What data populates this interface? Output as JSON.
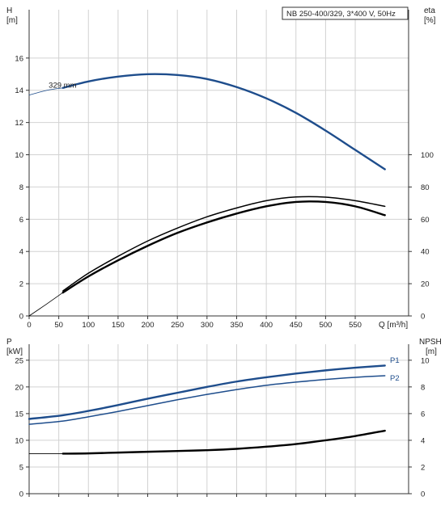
{
  "chart_data": [
    {
      "type": "line",
      "title": "NB 250-400/329, 3*400 V, 50Hz",
      "x_axis": {
        "label": "Q [m³/h]",
        "range": [
          0,
          640
        ],
        "ticks": [
          0,
          50,
          100,
          150,
          200,
          250,
          300,
          350,
          400,
          450,
          500,
          550
        ],
        "grid": true
      },
      "y_axis_left": {
        "label_top": "H",
        "label_unit": "[m]",
        "range": [
          0,
          19
        ],
        "ticks": [
          0,
          2,
          4,
          6,
          8,
          10,
          12,
          14,
          16
        ],
        "grid": true
      },
      "y_axis_right": {
        "label_top": "eta",
        "label_unit": "[%]",
        "range": [
          0,
          190
        ],
        "ticks": [
          0,
          20,
          40,
          60,
          80,
          100
        ]
      },
      "annotations": [
        {
          "text": "329 mm",
          "x": 33,
          "y": 14.2
        }
      ],
      "series": [
        {
          "axis": "left",
          "color": "#1e4d8c",
          "style": "extended-thin",
          "points": [
            [
              0,
              13.7
            ],
            [
              30,
              14.0
            ],
            [
              57,
              14.15
            ]
          ]
        },
        {
          "axis": "left",
          "color": "#1e4d8c",
          "style": "thick",
          "points": [
            [
              57,
              14.15
            ],
            [
              100,
              14.55
            ],
            [
              150,
              14.85
            ],
            [
              200,
              15.0
            ],
            [
              250,
              14.95
            ],
            [
              300,
              14.7
            ],
            [
              350,
              14.2
            ],
            [
              400,
              13.5
            ],
            [
              450,
              12.6
            ],
            [
              500,
              11.5
            ],
            [
              550,
              10.3
            ],
            [
              600,
              9.1
            ]
          ]
        },
        {
          "axis": "right",
          "color": "#000000",
          "style": "extended-thin",
          "points": [
            [
              0,
              0
            ],
            [
              30,
              7.5
            ],
            [
              57,
              14.5
            ]
          ]
        },
        {
          "axis": "right",
          "color": "#000000",
          "style": "medium",
          "points": [
            [
              57,
              15.5
            ],
            [
              100,
              26.5
            ],
            [
              150,
              37
            ],
            [
              200,
              46.5
            ],
            [
              250,
              54.5
            ],
            [
              300,
              61.5
            ],
            [
              350,
              67
            ],
            [
              400,
              71.5
            ],
            [
              450,
              73.8
            ],
            [
              500,
              73.7
            ],
            [
              550,
              71.5
            ],
            [
              600,
              68
            ]
          ]
        },
        {
          "axis": "right",
          "color": "#000000",
          "style": "thick",
          "points": [
            [
              57,
              14.5
            ],
            [
              100,
              24.5
            ],
            [
              150,
              34.5
            ],
            [
              200,
              43.5
            ],
            [
              250,
              51.5
            ],
            [
              300,
              58
            ],
            [
              350,
              63.5
            ],
            [
              400,
              68
            ],
            [
              450,
              70.7
            ],
            [
              500,
              70.7
            ],
            [
              550,
              68
            ],
            [
              600,
              62.5
            ]
          ]
        }
      ]
    },
    {
      "type": "line",
      "y_axis_left": {
        "label_top": "P",
        "label_unit": "[kW]",
        "range": [
          0,
          28
        ],
        "ticks": [
          0,
          5,
          10,
          15,
          20,
          25
        ],
        "grid": true
      },
      "y_axis_right": {
        "label_top": "NPSH",
        "label_unit": "[m]",
        "range": [
          0,
          11.2
        ],
        "ticks": [
          0,
          2,
          4,
          6,
          8,
          10
        ]
      },
      "x_axis": {
        "range": [
          0,
          640
        ],
        "ticks": [
          0,
          50,
          100,
          150,
          200,
          250,
          300,
          350,
          400,
          450,
          500,
          550
        ],
        "grid": true
      },
      "series": [
        {
          "name": "P1",
          "axis": "left",
          "color": "#1e4d8c",
          "style": "thick",
          "points": [
            [
              0,
              14.0
            ],
            [
              57,
              14.7
            ],
            [
              100,
              15.5
            ],
            [
              150,
              16.6
            ],
            [
              200,
              17.8
            ],
            [
              250,
              18.9
            ],
            [
              300,
              20.0
            ],
            [
              350,
              21.0
            ],
            [
              400,
              21.8
            ],
            [
              450,
              22.5
            ],
            [
              500,
              23.1
            ],
            [
              550,
              23.6
            ],
            [
              600,
              24.0
            ]
          ]
        },
        {
          "name": "P2",
          "axis": "left",
          "color": "#1e4d8c",
          "style": "medium",
          "points": [
            [
              0,
              13.0
            ],
            [
              57,
              13.6
            ],
            [
              100,
              14.4
            ],
            [
              150,
              15.4
            ],
            [
              200,
              16.5
            ],
            [
              250,
              17.6
            ],
            [
              300,
              18.6
            ],
            [
              350,
              19.5
            ],
            [
              400,
              20.3
            ],
            [
              450,
              20.9
            ],
            [
              500,
              21.4
            ],
            [
              550,
              21.8
            ],
            [
              600,
              22.1
            ]
          ]
        },
        {
          "axis": "left",
          "color": "#000000",
          "style": "extended-thin",
          "points": [
            [
              0,
              7.5
            ],
            [
              57,
              7.5
            ]
          ]
        },
        {
          "axis": "left",
          "color": "#000000",
          "style": "thick",
          "points": [
            [
              57,
              7.5
            ],
            [
              100,
              7.55
            ],
            [
              150,
              7.7
            ],
            [
              200,
              7.85
            ],
            [
              250,
              8.0
            ],
            [
              300,
              8.15
            ],
            [
              350,
              8.4
            ],
            [
              400,
              8.8
            ],
            [
              450,
              9.3
            ],
            [
              500,
              10.0
            ],
            [
              550,
              10.8
            ],
            [
              600,
              11.8
            ]
          ]
        }
      ],
      "series_labels": [
        {
          "text": "P1",
          "x": 625,
          "y": 24.5,
          "color": "#1e4d8c"
        },
        {
          "text": "P2",
          "x": 625,
          "y": 21.2,
          "color": "#1e4d8c"
        }
      ]
    }
  ]
}
